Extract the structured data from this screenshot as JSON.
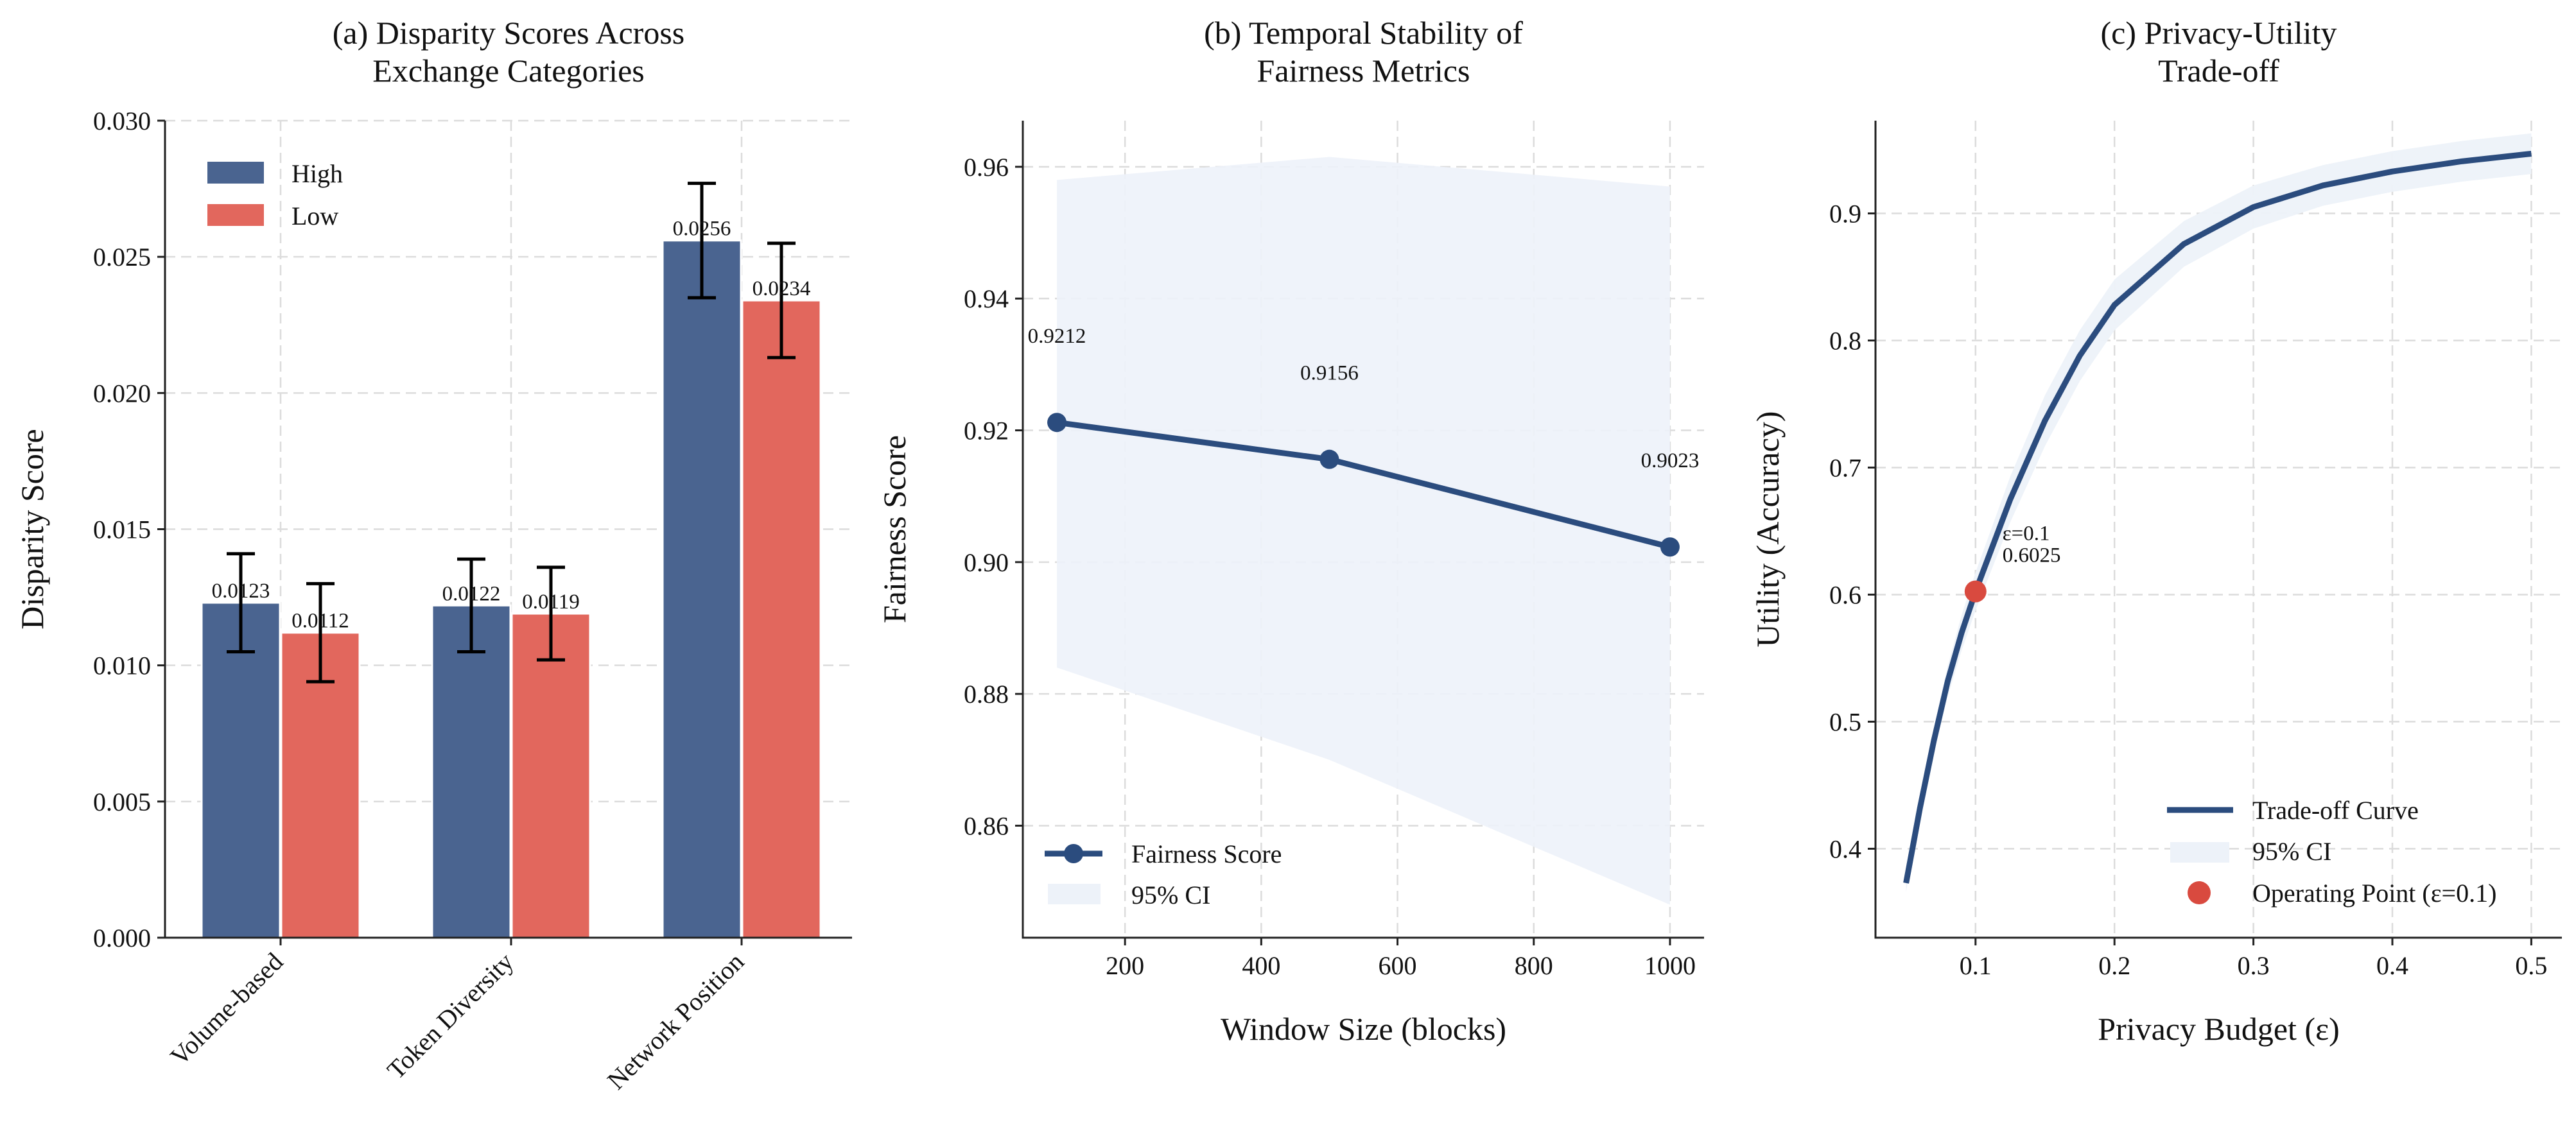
{
  "colors": {
    "high": "#4a6490",
    "low": "#e2675d",
    "line": "#2b4c7e",
    "ci": "#edf2f9",
    "operating_point": "#d94a3f"
  },
  "chart_data": [
    {
      "type": "bar",
      "title": "(a) Disparity Scores Across\nExchange Categories",
      "xlabel": "",
      "ylabel": "Disparity Score",
      "categories": [
        "Volume-based",
        "Token Diversity",
        "Network Position"
      ],
      "series": [
        {
          "name": "High",
          "values": [
            0.0123,
            0.0122,
            0.0256
          ],
          "errors": [
            0.0018,
            0.0017,
            0.0021
          ],
          "labels": [
            "0.0123",
            "0.0122",
            "0.0256"
          ]
        },
        {
          "name": "Low",
          "values": [
            0.0112,
            0.0119,
            0.0234
          ],
          "errors": [
            0.0018,
            0.0017,
            0.0021
          ],
          "labels": [
            "0.0112",
            "0.0119",
            "0.0234"
          ]
        }
      ],
      "ylim": [
        0,
        0.03
      ],
      "yticks": [
        "0.000",
        "0.005",
        "0.010",
        "0.015",
        "0.020",
        "0.025",
        "0.030"
      ],
      "legend": "top-left",
      "grid": true
    },
    {
      "type": "line",
      "title": "(b) Temporal Stability of\nFairness Metrics",
      "xlabel": "Window Size (blocks)",
      "ylabel": "Fairness Score",
      "x": [
        100,
        500,
        1000
      ],
      "series": [
        {
          "name": "Fairness Score",
          "values": [
            0.9212,
            0.9156,
            0.9023
          ],
          "labels": [
            "0.9212",
            "0.9156",
            "0.9023"
          ]
        }
      ],
      "ci": {
        "name": "95% CI",
        "lower": [
          0.884,
          0.87,
          0.848
        ],
        "upper": [
          0.958,
          0.9615,
          0.957
        ]
      },
      "xlim": [
        50,
        1050
      ],
      "ylim": [
        0.843,
        0.967
      ],
      "xticks": [
        "200",
        "400",
        "600",
        "800",
        "1000"
      ],
      "yticks": [
        "0.86",
        "0.88",
        "0.90",
        "0.92",
        "0.94",
        "0.96"
      ],
      "legend": "bottom-left",
      "grid": true
    },
    {
      "type": "line",
      "title": "(c) Privacy-Utility\nTrade-off",
      "xlabel": "Privacy Budget (ε)",
      "ylabel": "Utility (Accuracy)",
      "x": [
        0.05,
        0.06,
        0.07,
        0.08,
        0.09,
        0.1,
        0.125,
        0.15,
        0.175,
        0.2,
        0.25,
        0.3,
        0.35,
        0.4,
        0.45,
        0.5
      ],
      "series": [
        {
          "name": "Trade-off Curve",
          "values": [
            0.373,
            0.432,
            0.485,
            0.532,
            0.57,
            0.6025,
            0.675,
            0.737,
            0.788,
            0.828,
            0.876,
            0.905,
            0.922,
            0.933,
            0.941,
            0.947
          ]
        }
      ],
      "ci": {
        "name": "95% CI",
        "band": [
          0.007,
          0.008,
          0.01,
          0.012,
          0.014,
          0.015,
          0.018,
          0.02,
          0.02,
          0.02,
          0.018,
          0.017,
          0.016,
          0.016,
          0.016,
          0.016
        ]
      },
      "operating_point": {
        "name": "Operating Point (ε=0.1)",
        "x": 0.1,
        "y": 0.6025,
        "label_line1": "ε=0.1",
        "label_line2": "0.6025"
      },
      "xlim": [
        0.028,
        0.522
      ],
      "ylim": [
        0.33,
        0.973
      ],
      "xticks": [
        "0.1",
        "0.2",
        "0.3",
        "0.4",
        "0.5"
      ],
      "yticks": [
        "0.4",
        "0.5",
        "0.6",
        "0.7",
        "0.8",
        "0.9"
      ],
      "legend": "bottom-right",
      "grid": true
    }
  ]
}
